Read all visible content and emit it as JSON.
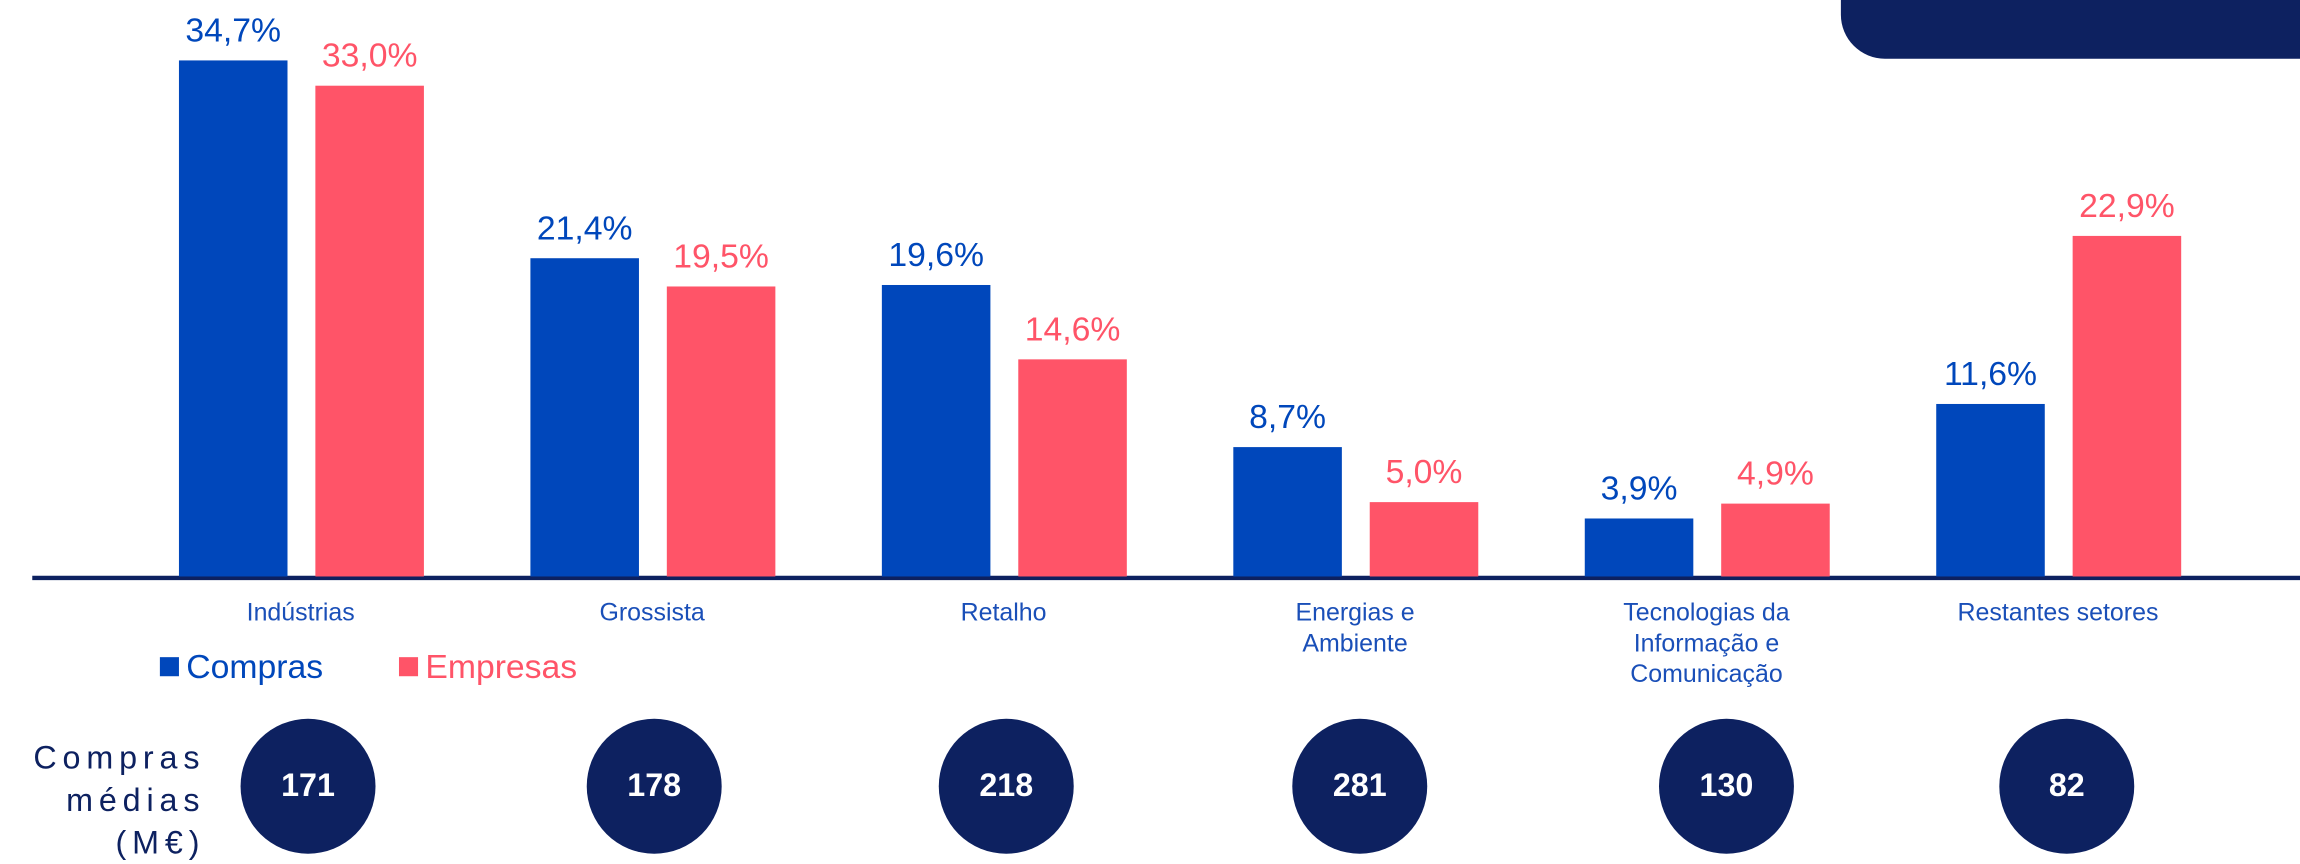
{
  "chart_data": {
    "type": "bar",
    "categories": [
      "Indústrias",
      "Grossista",
      "Retalho",
      "Energias e Ambiente",
      "Tecnologias da Informação e Comunicação",
      "Restantes setores"
    ],
    "series": [
      {
        "name": "Compras",
        "color": "#0047bb",
        "values": [
          34.7,
          21.4,
          19.6,
          8.7,
          3.9,
          11.6
        ],
        "value_labels": [
          "34,7%",
          "21,4%",
          "19,6%",
          "8,7%",
          "3,9%",
          "11,6%"
        ]
      },
      {
        "name": "Empresas",
        "color": "#ff5468",
        "values": [
          33.0,
          19.5,
          14.6,
          5.0,
          4.9,
          22.9
        ],
        "value_labels": [
          "33,0%",
          "19,5%",
          "14,6%",
          "5,0%",
          "4,9%",
          "22,9%"
        ]
      }
    ],
    "ylim": [
      0,
      36
    ],
    "averages": {
      "label": "Compras médias (M€)",
      "values": [
        171,
        178,
        218,
        281,
        130,
        82
      ],
      "color": "#0d2160"
    }
  }
}
